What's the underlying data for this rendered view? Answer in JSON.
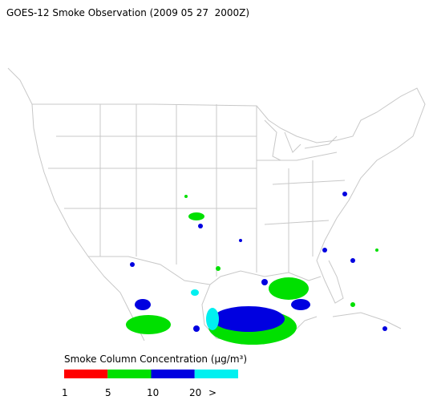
{
  "title": "GOES-12 Smoke Observation (2009 05 27  2000Z)",
  "legend": {
    "title": "Smoke Column Concentration (μg/m³)",
    "colors": [
      "#ff0000",
      "#00e000",
      "#0000e0",
      "#00f0f0"
    ],
    "labels": [
      "1",
      "5",
      "10",
      "20",
      ">"
    ]
  }
}
